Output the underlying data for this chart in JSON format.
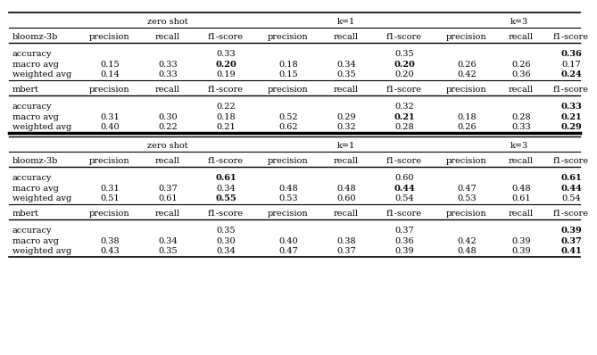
{
  "col_headers": [
    "",
    "precision",
    "recall",
    "f1-score",
    "precision",
    "recall",
    "f1-score",
    "precision",
    "recall",
    "f1-score"
  ],
  "table1": {
    "model1": "bloomz-3b",
    "model1_rows": [
      [
        "accuracy",
        "",
        "",
        "0.33",
        "",
        "",
        "0.35",
        "",
        "",
        "0.36"
      ],
      [
        "macro avg",
        "0.15",
        "0.33",
        "0.20",
        "0.18",
        "0.34",
        "0.20",
        "0.26",
        "0.26",
        "0.17"
      ],
      [
        "weighted avg",
        "0.14",
        "0.33",
        "0.19",
        "0.15",
        "0.35",
        "0.20",
        "0.42",
        "0.36",
        "0.24"
      ]
    ],
    "model1_bold": [
      [
        false,
        false,
        false,
        false,
        false,
        false,
        false,
        false,
        false,
        true
      ],
      [
        false,
        false,
        false,
        true,
        false,
        false,
        true,
        false,
        false,
        false
      ],
      [
        false,
        false,
        false,
        false,
        false,
        false,
        false,
        false,
        false,
        true
      ]
    ],
    "model2": "mbert",
    "model2_rows": [
      [
        "accuracy",
        "",
        "",
        "0.22",
        "",
        "",
        "0.32",
        "",
        "",
        "0.33"
      ],
      [
        "macro avg",
        "0.31",
        "0.30",
        "0.18",
        "0.52",
        "0.29",
        "0.21",
        "0.18",
        "0.28",
        "0.21"
      ],
      [
        "weighted avg",
        "0.40",
        "0.22",
        "0.21",
        "0.62",
        "0.32",
        "0.28",
        "0.26",
        "0.33",
        "0.29"
      ]
    ],
    "model2_bold": [
      [
        false,
        false,
        false,
        false,
        false,
        false,
        false,
        false,
        false,
        true
      ],
      [
        false,
        false,
        false,
        false,
        false,
        false,
        true,
        false,
        false,
        true
      ],
      [
        false,
        false,
        false,
        false,
        false,
        false,
        false,
        false,
        false,
        true
      ]
    ]
  },
  "table2": {
    "model1": "bloomz-3b",
    "model1_rows": [
      [
        "accuracy",
        "",
        "",
        "0.61",
        "",
        "",
        "0.60",
        "",
        "",
        "0.61"
      ],
      [
        "macro avg",
        "0.31",
        "0.37",
        "0.34",
        "0.48",
        "0.48",
        "0.44",
        "0.47",
        "0.48",
        "0.44"
      ],
      [
        "weighted avg",
        "0.51",
        "0.61",
        "0.55",
        "0.53",
        "0.60",
        "0.54",
        "0.53",
        "0.61",
        "0.54"
      ]
    ],
    "model1_bold": [
      [
        false,
        false,
        false,
        true,
        false,
        false,
        false,
        false,
        false,
        true
      ],
      [
        false,
        false,
        false,
        false,
        false,
        false,
        true,
        false,
        false,
        true
      ],
      [
        false,
        false,
        false,
        true,
        false,
        false,
        false,
        false,
        false,
        false
      ]
    ],
    "model2": "mbert",
    "model2_rows": [
      [
        "accuracy",
        "",
        "",
        "0.35",
        "",
        "",
        "0.37",
        "",
        "",
        "0.39"
      ],
      [
        "macro avg",
        "0.38",
        "0.34",
        "0.30",
        "0.40",
        "0.38",
        "0.36",
        "0.42",
        "0.39",
        "0.37"
      ],
      [
        "weighted avg",
        "0.43",
        "0.35",
        "0.34",
        "0.47",
        "0.37",
        "0.39",
        "0.48",
        "0.39",
        "0.41"
      ]
    ],
    "model2_bold": [
      [
        false,
        false,
        false,
        false,
        false,
        false,
        false,
        false,
        false,
        true
      ],
      [
        false,
        false,
        false,
        false,
        false,
        false,
        false,
        false,
        false,
        true
      ],
      [
        false,
        false,
        false,
        false,
        false,
        false,
        false,
        false,
        false,
        true
      ]
    ]
  },
  "font_size": 7.0,
  "bg_color": "white",
  "text_color": "black"
}
